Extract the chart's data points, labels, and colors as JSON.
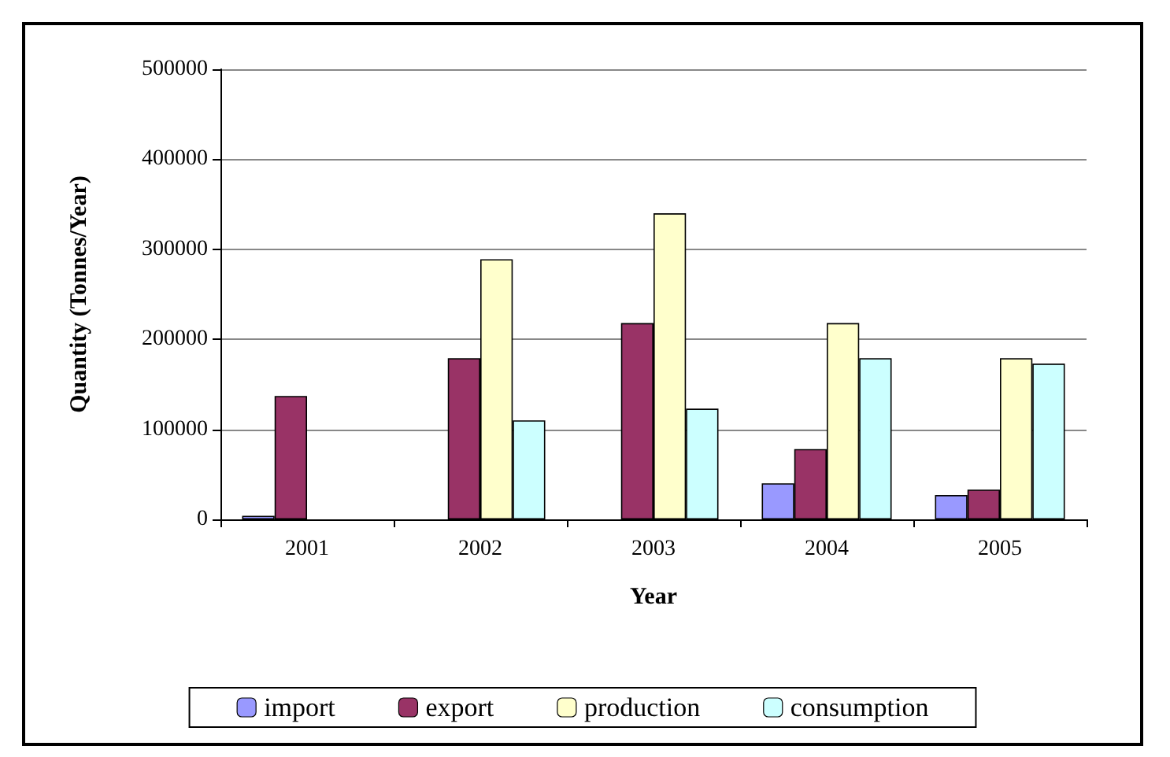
{
  "chart_data": {
    "type": "bar",
    "xlabel": "Year",
    "ylabel": "Quantity (Tonnes/Year)",
    "categories": [
      "2001",
      "2002",
      "2003",
      "2004",
      "2005"
    ],
    "series": [
      {
        "name": "import",
        "color": "#9999ff",
        "values": [
          4000,
          null,
          null,
          40000,
          27000
        ]
      },
      {
        "name": "export",
        "color": "#993366",
        "values": [
          137000,
          179000,
          218000,
          78000,
          33000
        ]
      },
      {
        "name": "production",
        "color": "#ffffcc",
        "values": [
          null,
          289000,
          340000,
          218000,
          179000
        ]
      },
      {
        "name": "consumption",
        "color": "#ccffff",
        "values": [
          null,
          110000,
          123000,
          179000,
          173000
        ]
      }
    ],
    "ylim": [
      0,
      500000
    ],
    "yticks": [
      0,
      100000,
      200000,
      300000,
      400000,
      500000
    ],
    "grid": "y",
    "legend": "bottom"
  }
}
